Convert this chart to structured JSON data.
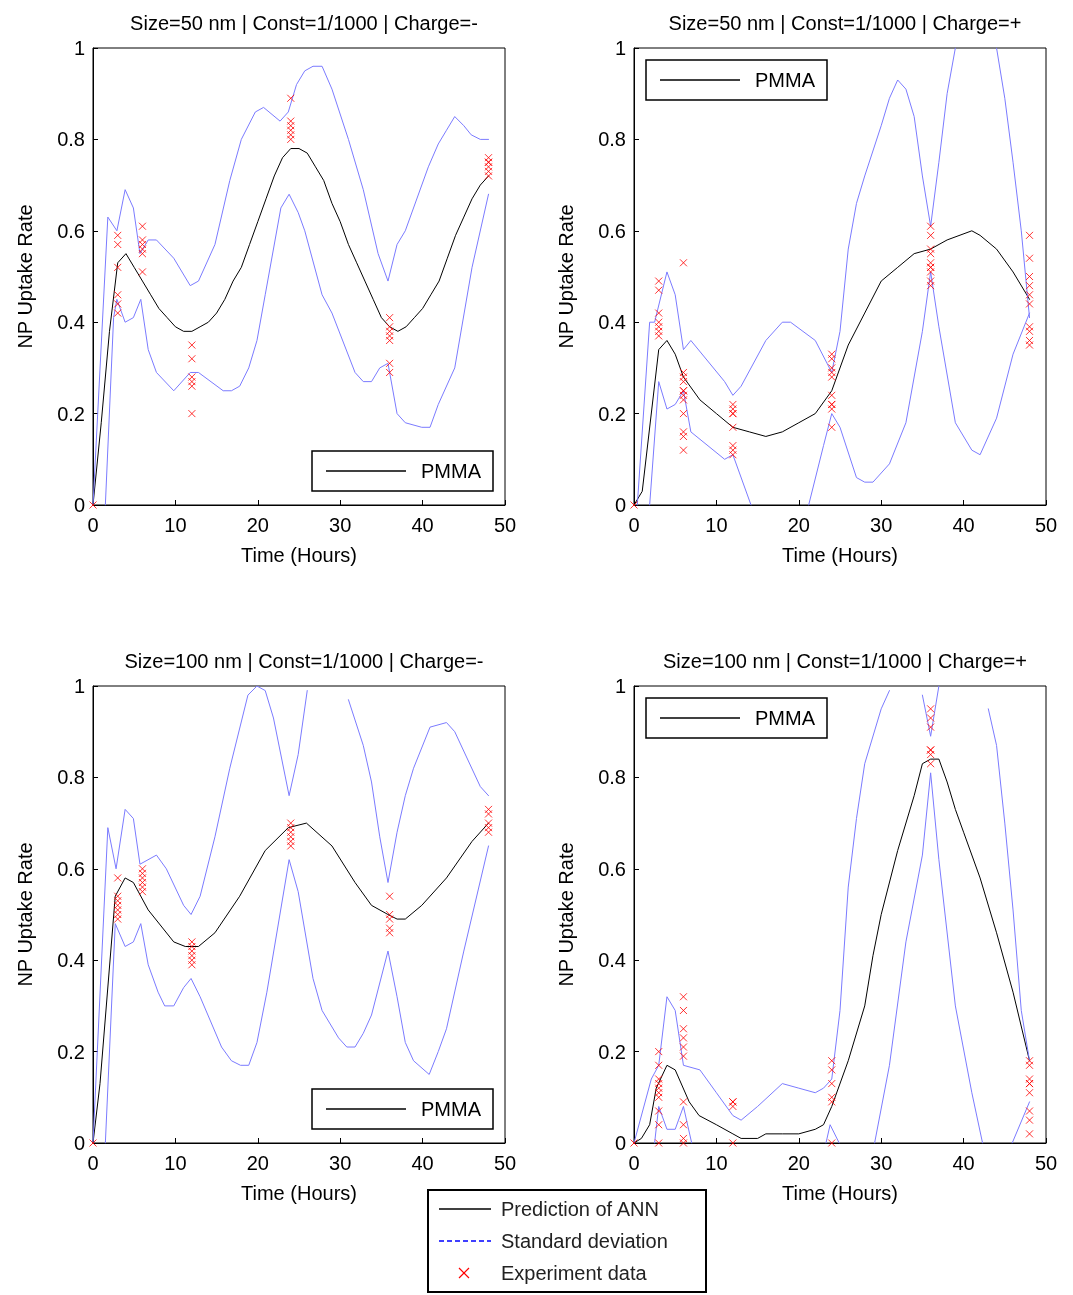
{
  "chart_data": [
    {
      "type": "line",
      "title": "Size=50 nm | Const=1/1000 | Charge=-",
      "xlabel": "Time (Hours)",
      "ylabel": "NP Uptake Rate",
      "xlim": [
        0,
        50
      ],
      "xticks": [
        0,
        10,
        20,
        30,
        40,
        50
      ],
      "ylim": [
        0,
        1
      ],
      "yticks": [
        0,
        0.2,
        0.4,
        0.6,
        0.8,
        1
      ],
      "grid": false,
      "legend": "bottom right",
      "marker": "none",
      "series": [
        {
          "name": "PMMA",
          "color": "#000000",
          "x": [
            0,
            1,
            2,
            3,
            4,
            5,
            6,
            7,
            8,
            9,
            10,
            11,
            12,
            13,
            14,
            15,
            16,
            17,
            18,
            19,
            20,
            21,
            22,
            23,
            24,
            25,
            26,
            27,
            28,
            29,
            30,
            31,
            32,
            33,
            34,
            35,
            36,
            37,
            38,
            39,
            40,
            41,
            42,
            43,
            44,
            45,
            46,
            47,
            48
          ],
          "values": [
            0,
            0.18,
            0.38,
            0.53,
            0.55,
            0.52,
            0.49,
            0.46,
            0.43,
            0.41,
            0.39,
            0.38,
            0.38,
            0.39,
            0.4,
            0.42,
            0.45,
            0.49,
            0.52,
            0.57,
            0.62,
            0.67,
            0.72,
            0.76,
            0.78,
            0.78,
            0.77,
            0.74,
            0.71,
            0.66,
            0.62,
            0.57,
            0.53,
            0.49,
            0.45,
            0.41,
            0.39,
            0.38,
            0.39,
            0.41,
            0.43,
            0.46,
            0.49,
            0.54,
            0.59,
            0.63,
            0.67,
            0.7,
            0.72
          ]
        },
        {
          "color": "#7b7bff",
          "x": [
            0,
            1.8,
            2.9,
            3.9,
            4.9,
            5.7,
            6.7,
            7.7,
            9.8,
            11.8,
            12.8,
            14.8,
            16.6,
            18,
            19.7,
            20.7,
            22.7,
            23.7,
            24.7,
            25.7,
            26.7,
            27.8,
            29,
            31,
            32.8,
            34.6,
            35.8,
            36.9,
            37.9,
            40.7,
            41.9,
            42.9,
            43.9,
            45,
            45.9,
            47,
            48
          ],
          "values": [
            0,
            0.63,
            0.6,
            0.69,
            0.65,
            0.55,
            0.58,
            0.58,
            0.54,
            0.48,
            0.49,
            0.57,
            0.71,
            0.8,
            0.86,
            0.87,
            0.84,
            0.86,
            0.92,
            0.95,
            0.96,
            0.96,
            0.91,
            0.8,
            0.69,
            0.55,
            0.49,
            0.57,
            0.6,
            0.74,
            0.79,
            0.82,
            0.85,
            0.83,
            0.81,
            0.8,
            0.8
          ]
        },
        {
          "color": "#7b7bff",
          "x": [
            1.5,
            2.5,
            2.9,
            3.9,
            4.9,
            5.8,
            6.7,
            7.7,
            9.8,
            11.8,
            12.8,
            15.8,
            16.8,
            17.8,
            18.9,
            19.9,
            20.9,
            22.8,
            23.8,
            24.9,
            25.7,
            27.8,
            29,
            31.8,
            32.8,
            33.8,
            34.8,
            35.8,
            36.9,
            37.9,
            39.9,
            40.9,
            41.9,
            43.9,
            46,
            48
          ],
          "values": [
            0,
            0.41,
            0.45,
            0.4,
            0.41,
            0.45,
            0.34,
            0.29,
            0.25,
            0.29,
            0.29,
            0.25,
            0.25,
            0.26,
            0.3,
            0.36,
            0.46,
            0.65,
            0.68,
            0.64,
            0.6,
            0.46,
            0.42,
            0.29,
            0.27,
            0.27,
            0.3,
            0.31,
            0.2,
            0.18,
            0.17,
            0.17,
            0.22,
            0.3,
            0.52,
            0.68
          ]
        },
        {
          "type": "scatter",
          "marker": "cross",
          "color": "#ff0000",
          "x": [
            0,
            3,
            3,
            3,
            3,
            3,
            3,
            6,
            6,
            6,
            6,
            6,
            6,
            12,
            12,
            12,
            12,
            12,
            12,
            24,
            24,
            24,
            24,
            24,
            24,
            36,
            36,
            36,
            36,
            36,
            36,
            36,
            48,
            48,
            48,
            48,
            48,
            48
          ],
          "values": [
            0,
            0.59,
            0.57,
            0.52,
            0.46,
            0.44,
            0.42,
            0.61,
            0.58,
            0.57,
            0.56,
            0.55,
            0.51,
            0.35,
            0.32,
            0.28,
            0.27,
            0.26,
            0.2,
            0.89,
            0.84,
            0.83,
            0.82,
            0.81,
            0.8,
            0.41,
            0.39,
            0.38,
            0.37,
            0.36,
            0.31,
            0.29,
            0.76,
            0.75,
            0.75,
            0.74,
            0.73,
            0.72
          ]
        }
      ]
    },
    {
      "type": "line",
      "title": "Size=50 nm | Const=1/1000 | Charge=+",
      "xlabel": "Time (Hours)",
      "ylabel": "NP Uptake Rate",
      "xlim": [
        0,
        50
      ],
      "xticks": [
        0,
        10,
        20,
        30,
        40,
        50
      ],
      "ylim": [
        0,
        1
      ],
      "yticks": [
        0,
        0.2,
        0.4,
        0.6,
        0.8,
        1
      ],
      "grid": false,
      "legend": "top left",
      "marker": "none",
      "series": [
        {
          "name": "PMMA",
          "color": "#000000",
          "x": [
            0,
            1,
            3,
            4,
            5,
            6,
            8,
            10,
            12,
            14,
            16,
            18,
            20,
            22,
            24,
            26,
            28,
            30,
            32,
            34,
            36,
            38,
            41,
            42,
            44,
            46,
            48
          ],
          "values": [
            0,
            0.03,
            0.34,
            0.36,
            0.33,
            0.28,
            0.23,
            0.2,
            0.17,
            0.16,
            0.15,
            0.16,
            0.18,
            0.2,
            0.25,
            0.35,
            0.42,
            0.49,
            0.52,
            0.55,
            0.56,
            0.58,
            0.6,
            0.59,
            0.56,
            0.51,
            0.45
          ]
        },
        {
          "color": "#7b7bff",
          "x": [
            0.4,
            1.9,
            2.5,
            4,
            5,
            6,
            6.9,
            11,
            12,
            13,
            16,
            18,
            19,
            22,
            24,
            25,
            26,
            27,
            28,
            30,
            31,
            32,
            33,
            34,
            35,
            36,
            37,
            38,
            39,
            40,
            41,
            42,
            43,
            44,
            45,
            46,
            47,
            48
          ],
          "values": [
            0,
            0.4,
            0.4,
            0.51,
            0.46,
            0.34,
            0.36,
            0.27,
            0.24,
            0.26,
            0.36,
            0.4,
            0.4,
            0.36,
            0.29,
            0.38,
            0.56,
            0.66,
            0.72,
            0.83,
            0.89,
            0.93,
            0.91,
            0.85,
            0.72,
            0.61,
            0.75,
            0.9,
            1,
            null,
            null,
            null,
            null,
            1,
            0.89,
            0.75,
            0.6,
            0.41
          ]
        },
        {
          "color": "#7b7bff",
          "x": [
            1.9,
            3,
            4,
            5,
            6,
            6.9,
            11,
            12,
            14.2,
            17,
            21.2,
            23,
            24,
            25,
            27,
            28,
            29,
            31,
            33,
            35,
            36,
            37,
            39,
            41,
            42,
            44,
            46,
            48
          ],
          "values": [
            0,
            0.27,
            0.21,
            0.22,
            0.25,
            0.16,
            0.1,
            0.11,
            0,
            null,
            0,
            0.13,
            0.2,
            0.17,
            0.06,
            0.05,
            0.05,
            0.09,
            0.18,
            0.38,
            0.51,
            0.39,
            0.18,
            0.12,
            0.11,
            0.19,
            0.33,
            0.42
          ]
        },
        {
          "type": "scatter",
          "marker": "cross",
          "color": "#ff0000",
          "x": [
            0,
            3,
            3,
            3,
            3,
            3,
            3,
            3,
            6,
            6,
            6,
            6,
            6,
            6,
            6,
            6,
            6,
            6,
            6,
            6,
            12,
            12,
            12,
            12,
            12,
            12,
            12,
            12,
            24,
            24,
            24,
            24,
            24,
            24,
            24,
            24,
            24,
            24,
            36,
            36,
            36,
            36,
            36,
            36,
            36,
            36,
            36,
            36,
            48,
            48,
            48,
            48,
            48,
            48,
            48,
            48,
            48,
            48
          ],
          "values": [
            0,
            0.49,
            0.47,
            0.42,
            0.4,
            0.39,
            0.38,
            0.37,
            0.53,
            0.29,
            0.28,
            0.27,
            0.25,
            0.25,
            0.24,
            0.23,
            0.2,
            0.16,
            0.15,
            0.12,
            0.22,
            0.21,
            0.2,
            0.2,
            0.17,
            0.13,
            0.12,
            0.11,
            0.33,
            0.32,
            0.3,
            0.29,
            0.28,
            0.24,
            0.22,
            0.22,
            0.21,
            0.17,
            0.61,
            0.59,
            0.56,
            0.55,
            0.53,
            0.52,
            0.52,
            0.51,
            0.49,
            0.48,
            0.59,
            0.54,
            0.5,
            0.48,
            0.46,
            0.44,
            0.39,
            0.38,
            0.36,
            0.35
          ]
        }
      ]
    },
    {
      "type": "line",
      "title": "Size=100 nm | Const=1/1000 | Charge=-",
      "xlabel": "Time (Hours)",
      "ylabel": "NP Uptake Rate",
      "xlim": [
        0,
        50
      ],
      "xticks": [
        0,
        10,
        20,
        30,
        40,
        50
      ],
      "ylim": [
        0,
        1
      ],
      "yticks": [
        0,
        0.2,
        0.4,
        0.6,
        0.8,
        1
      ],
      "grid": false,
      "legend": "bottom right",
      "marker": "none",
      "series": [
        {
          "name": "PMMA",
          "color": "#000000",
          "x": [
            0,
            0.85,
            2.7,
            3.9,
            4.9,
            6.7,
            9.8,
            11.2,
            12.8,
            14.8,
            17.8,
            20.9,
            23.7,
            25.9,
            29,
            31.8,
            33.8,
            35.8,
            36.9,
            37.9,
            39.9,
            42.9,
            46,
            48
          ],
          "values": [
            0,
            0.13,
            0.54,
            0.58,
            0.57,
            0.51,
            0.44,
            0.43,
            0.43,
            0.46,
            0.54,
            0.64,
            0.69,
            0.7,
            0.65,
            0.57,
            0.52,
            0.5,
            0.49,
            0.49,
            0.52,
            0.58,
            0.66,
            0.7
          ]
        },
        {
          "color": "#7b7bff",
          "x": [
            0,
            1.8,
            2.8,
            3.9,
            4.9,
            5.7,
            7.7,
            8.9,
            11,
            11.9,
            13,
            14.8,
            16.6,
            18.8,
            19.9,
            20.9,
            21.9,
            23.8,
            24.9,
            26,
            27,
            28,
            29,
            30,
            31,
            32.8,
            33.8,
            34.8,
            35.8,
            36.9,
            37.9,
            38.9,
            40.9,
            42.9,
            43.9,
            47,
            48
          ],
          "values": [
            0,
            0.69,
            0.6,
            0.73,
            0.71,
            0.61,
            0.63,
            0.6,
            0.52,
            0.5,
            0.54,
            0.67,
            0.82,
            0.98,
            1,
            0.99,
            0.93,
            0.76,
            0.85,
            0.99,
            null,
            null,
            null,
            null,
            0.97,
            0.87,
            0.79,
            0.67,
            0.57,
            0.68,
            0.76,
            0.82,
            0.91,
            0.92,
            0.9,
            0.78,
            0.76
          ]
        },
        {
          "color": "#7b7bff",
          "x": [
            1.5,
            2.7,
            3.9,
            4.9,
            5.8,
            6.7,
            7.9,
            8.7,
            9.8,
            11,
            11.9,
            13,
            15.6,
            16.8,
            17.9,
            18.9,
            19.9,
            21.1,
            23.8,
            24.9,
            26.7,
            27.8,
            29.8,
            30.8,
            31.8,
            32.8,
            33.8,
            35.8,
            36.9,
            37.9,
            38.9,
            40.8,
            41.9,
            42.9,
            45,
            48
          ],
          "values": [
            0,
            0.48,
            0.43,
            0.44,
            0.48,
            0.39,
            0.33,
            0.3,
            0.3,
            0.34,
            0.36,
            0.32,
            0.21,
            0.18,
            0.17,
            0.17,
            0.22,
            0.33,
            0.62,
            0.55,
            0.36,
            0.29,
            0.23,
            0.21,
            0.21,
            0.24,
            0.28,
            0.42,
            0.32,
            0.22,
            0.18,
            0.15,
            0.2,
            0.25,
            0.42,
            0.65
          ]
        },
        {
          "type": "scatter",
          "marker": "cross",
          "color": "#ff0000",
          "x": [
            0,
            3,
            3,
            3,
            3,
            3,
            3,
            3,
            6,
            6,
            6,
            6,
            6,
            6,
            12,
            12,
            12,
            12,
            12,
            12,
            24,
            24,
            24,
            24,
            24,
            24,
            36,
            36,
            36,
            36,
            36,
            48,
            48,
            48,
            48,
            48
          ],
          "values": [
            0,
            0.58,
            0.54,
            0.53,
            0.52,
            0.51,
            0.5,
            0.49,
            0.6,
            0.59,
            0.58,
            0.57,
            0.56,
            0.55,
            0.44,
            0.43,
            0.42,
            0.41,
            0.4,
            0.39,
            0.7,
            0.69,
            0.68,
            0.67,
            0.66,
            0.65,
            0.54,
            0.5,
            0.49,
            0.47,
            0.46,
            0.73,
            0.72,
            0.7,
            0.69,
            0.68
          ]
        }
      ]
    },
    {
      "type": "line",
      "title": "Size=100 nm | Const=1/1000 | Charge=+",
      "xlabel": "Time (Hours)",
      "ylabel": "NP Uptake Rate",
      "xlim": [
        0,
        50
      ],
      "xticks": [
        0,
        10,
        20,
        30,
        40,
        50
      ],
      "ylim": [
        0,
        1
      ],
      "yticks": [
        0,
        0.2,
        0.4,
        0.6,
        0.8,
        1
      ],
      "grid": false,
      "legend": "top left",
      "marker": "none",
      "series": [
        {
          "name": "PMMA",
          "color": "#000000",
          "x": [
            0,
            0.9,
            1.9,
            2.7,
            4,
            5,
            6.7,
            7.9,
            10,
            12,
            13,
            15,
            16,
            18,
            20,
            22,
            23,
            24,
            26,
            28,
            29,
            30,
            32,
            34,
            35,
            36,
            37,
            38,
            39,
            40,
            42,
            44,
            46,
            48
          ],
          "values": [
            0,
            0.01,
            0.04,
            0.12,
            0.17,
            0.16,
            0.09,
            0.06,
            0.04,
            0.02,
            0.01,
            0.01,
            0.02,
            0.02,
            0.02,
            0.03,
            0.04,
            0.08,
            0.18,
            0.3,
            0.41,
            0.5,
            0.64,
            0.76,
            0.83,
            0.84,
            0.84,
            0.79,
            0.73,
            0.68,
            0.58,
            0.46,
            0.33,
            0.18
          ]
        },
        {
          "color": "#7b7bff",
          "x": [
            0,
            2.1,
            3,
            4,
            5,
            6,
            8,
            10,
            12,
            13,
            15,
            18,
            20,
            22,
            23,
            24,
            25,
            26,
            27,
            28,
            30,
            31,
            32,
            33,
            34,
            35,
            36,
            37,
            38,
            39,
            40,
            41,
            42,
            43,
            44,
            45,
            46,
            47,
            48
          ],
          "values": [
            0,
            0.14,
            0.17,
            0.32,
            0.29,
            0.17,
            0.16,
            0.11,
            0.06,
            0.05,
            0.08,
            0.13,
            0.12,
            0.11,
            0.12,
            0.14,
            0.29,
            0.56,
            0.71,
            0.83,
            0.95,
            0.99,
            null,
            null,
            null,
            0.98,
            0.89,
            1,
            null,
            null,
            null,
            null,
            null,
            0.95,
            0.87,
            0.7,
            0.51,
            0.29,
            0.18
          ]
        },
        {
          "color": "#7b7bff",
          "x": [
            2.5,
            3,
            4,
            5,
            6,
            7,
            8,
            23.3,
            23.8,
            24.9,
            27,
            29.2,
            31,
            33,
            35,
            36,
            37,
            39,
            41,
            42.3,
            44,
            45.9,
            48
          ],
          "values": [
            0,
            0.08,
            0.03,
            0.03,
            0.08,
            0,
            null,
            0,
            0.04,
            0,
            null,
            0,
            0.17,
            0.44,
            0.63,
            0.81,
            0.62,
            0.3,
            0.11,
            0,
            null,
            0,
            0.09
          ]
        },
        {
          "type": "scatter",
          "marker": "cross",
          "color": "#ff0000",
          "x": [
            0,
            3,
            3,
            3,
            3,
            3,
            3,
            3,
            3,
            3,
            3,
            6,
            6,
            6,
            6,
            6,
            6,
            6,
            6,
            6,
            6,
            12,
            12,
            12,
            12,
            24,
            24,
            24,
            24,
            24,
            24,
            36,
            36,
            36,
            36,
            36,
            36,
            36,
            48,
            48,
            48,
            48,
            48,
            48,
            48,
            48,
            48
          ],
          "values": [
            0,
            0.2,
            0.17,
            0.14,
            0.13,
            0.12,
            0.11,
            0.1,
            0.07,
            0.04,
            0,
            0.32,
            0.29,
            0.25,
            0.23,
            0.21,
            0.19,
            0.09,
            0.04,
            0.01,
            0,
            0.09,
            0.09,
            0.08,
            0,
            0.18,
            0.16,
            0.13,
            0.1,
            0.09,
            0,
            0.95,
            0.93,
            0.91,
            0.86,
            0.86,
            0.85,
            0.83,
            0.18,
            0.17,
            0.14,
            0.13,
            0.13,
            0.11,
            0.07,
            0.05,
            0.02
          ]
        }
      ]
    },
    {
      "type": "other",
      "annotations": [
        "Prediction of ANN",
        "Standard deviation",
        "Experiment data"
      ]
    }
  ]
}
